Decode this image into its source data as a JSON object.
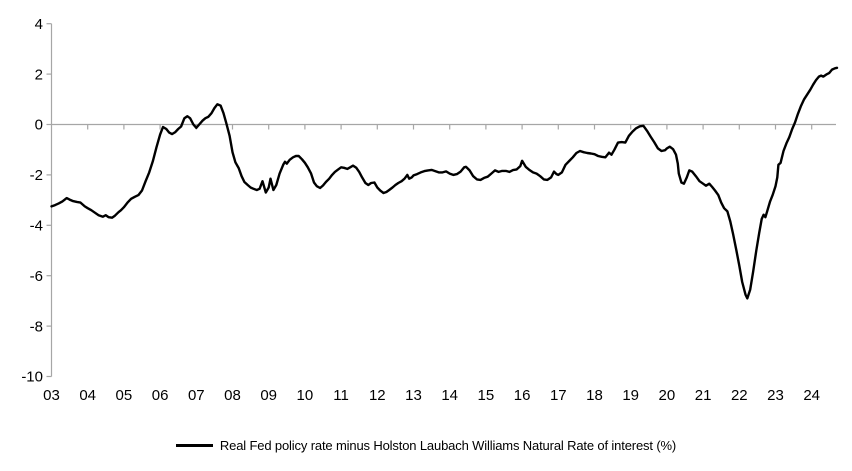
{
  "chart_data": {
    "type": "line",
    "title": "",
    "series_name": "Real Fed policy rate minus Holston Laubach Williams Natural Rate of interest (%)",
    "line_color": "#000000",
    "axis_color": "#A6A6A6",
    "grid": "zero-line-only",
    "legend_position": "bottom-center",
    "ylim": [
      -10,
      4
    ],
    "xlim": [
      2003,
      2024.75
    ],
    "y_ticks": [
      4,
      2,
      0,
      -2,
      -4,
      -6,
      -8,
      -10
    ],
    "x_tick_labels": [
      "03",
      "04",
      "05",
      "06",
      "07",
      "08",
      "09",
      "10",
      "11",
      "12",
      "13",
      "14",
      "15",
      "16",
      "17",
      "18",
      "19",
      "20",
      "21",
      "22",
      "23",
      "24"
    ],
    "points": [
      [
        2003.0,
        -3.25
      ],
      [
        2003.1,
        -3.2
      ],
      [
        2003.2,
        -3.13
      ],
      [
        2003.3,
        -3.05
      ],
      [
        2003.42,
        -2.92
      ],
      [
        2003.5,
        -2.98
      ],
      [
        2003.58,
        -3.03
      ],
      [
        2003.7,
        -3.07
      ],
      [
        2003.8,
        -3.1
      ],
      [
        2003.92,
        -3.25
      ],
      [
        2004.0,
        -3.32
      ],
      [
        2004.1,
        -3.4
      ],
      [
        2004.2,
        -3.5
      ],
      [
        2004.3,
        -3.6
      ],
      [
        2004.42,
        -3.66
      ],
      [
        2004.5,
        -3.6
      ],
      [
        2004.58,
        -3.68
      ],
      [
        2004.67,
        -3.7
      ],
      [
        2004.75,
        -3.62
      ],
      [
        2004.85,
        -3.48
      ],
      [
        2004.92,
        -3.4
      ],
      [
        2005.0,
        -3.28
      ],
      [
        2005.1,
        -3.1
      ],
      [
        2005.2,
        -2.95
      ],
      [
        2005.3,
        -2.87
      ],
      [
        2005.4,
        -2.8
      ],
      [
        2005.5,
        -2.62
      ],
      [
        2005.6,
        -2.25
      ],
      [
        2005.7,
        -1.9
      ],
      [
        2005.8,
        -1.45
      ],
      [
        2005.9,
        -0.9
      ],
      [
        2006.0,
        -0.4
      ],
      [
        2006.08,
        -0.1
      ],
      [
        2006.17,
        -0.18
      ],
      [
        2006.25,
        -0.32
      ],
      [
        2006.33,
        -0.38
      ],
      [
        2006.42,
        -0.3
      ],
      [
        2006.5,
        -0.18
      ],
      [
        2006.58,
        -0.08
      ],
      [
        2006.67,
        0.25
      ],
      [
        2006.75,
        0.33
      ],
      [
        2006.83,
        0.25
      ],
      [
        2006.92,
        0.0
      ],
      [
        2007.0,
        -0.13
      ],
      [
        2007.08,
        0.0
      ],
      [
        2007.17,
        0.15
      ],
      [
        2007.25,
        0.25
      ],
      [
        2007.33,
        0.3
      ],
      [
        2007.42,
        0.45
      ],
      [
        2007.5,
        0.65
      ],
      [
        2007.58,
        0.8
      ],
      [
        2007.67,
        0.75
      ],
      [
        2007.75,
        0.45
      ],
      [
        2007.83,
        0.05
      ],
      [
        2007.92,
        -0.45
      ],
      [
        2008.0,
        -1.1
      ],
      [
        2008.08,
        -1.5
      ],
      [
        2008.17,
        -1.73
      ],
      [
        2008.25,
        -2.05
      ],
      [
        2008.33,
        -2.28
      ],
      [
        2008.42,
        -2.4
      ],
      [
        2008.5,
        -2.5
      ],
      [
        2008.58,
        -2.55
      ],
      [
        2008.67,
        -2.6
      ],
      [
        2008.75,
        -2.55
      ],
      [
        2008.83,
        -2.25
      ],
      [
        2008.92,
        -2.7
      ],
      [
        2009.0,
        -2.5
      ],
      [
        2009.05,
        -2.15
      ],
      [
        2009.13,
        -2.6
      ],
      [
        2009.21,
        -2.4
      ],
      [
        2009.3,
        -1.95
      ],
      [
        2009.4,
        -1.6
      ],
      [
        2009.45,
        -1.48
      ],
      [
        2009.5,
        -1.55
      ],
      [
        2009.58,
        -1.4
      ],
      [
        2009.67,
        -1.3
      ],
      [
        2009.75,
        -1.25
      ],
      [
        2009.83,
        -1.25
      ],
      [
        2009.92,
        -1.38
      ],
      [
        2010.0,
        -1.52
      ],
      [
        2010.08,
        -1.7
      ],
      [
        2010.17,
        -1.95
      ],
      [
        2010.25,
        -2.3
      ],
      [
        2010.33,
        -2.45
      ],
      [
        2010.42,
        -2.52
      ],
      [
        2010.5,
        -2.42
      ],
      [
        2010.58,
        -2.28
      ],
      [
        2010.67,
        -2.15
      ],
      [
        2010.75,
        -2.0
      ],
      [
        2010.83,
        -1.88
      ],
      [
        2010.92,
        -1.78
      ],
      [
        2011.0,
        -1.7
      ],
      [
        2011.08,
        -1.72
      ],
      [
        2011.17,
        -1.76
      ],
      [
        2011.25,
        -1.7
      ],
      [
        2011.33,
        -1.63
      ],
      [
        2011.42,
        -1.72
      ],
      [
        2011.5,
        -1.88
      ],
      [
        2011.58,
        -2.1
      ],
      [
        2011.67,
        -2.32
      ],
      [
        2011.75,
        -2.4
      ],
      [
        2011.83,
        -2.32
      ],
      [
        2011.92,
        -2.3
      ],
      [
        2012.0,
        -2.5
      ],
      [
        2012.08,
        -2.62
      ],
      [
        2012.17,
        -2.72
      ],
      [
        2012.25,
        -2.68
      ],
      [
        2012.33,
        -2.6
      ],
      [
        2012.42,
        -2.5
      ],
      [
        2012.5,
        -2.4
      ],
      [
        2012.58,
        -2.32
      ],
      [
        2012.67,
        -2.25
      ],
      [
        2012.75,
        -2.15
      ],
      [
        2012.83,
        -2.0
      ],
      [
        2012.88,
        -2.15
      ],
      [
        2012.95,
        -2.1
      ],
      [
        2013.0,
        -2.02
      ],
      [
        2013.1,
        -1.97
      ],
      [
        2013.2,
        -1.9
      ],
      [
        2013.3,
        -1.85
      ],
      [
        2013.4,
        -1.82
      ],
      [
        2013.5,
        -1.8
      ],
      [
        2013.6,
        -1.85
      ],
      [
        2013.7,
        -1.9
      ],
      [
        2013.8,
        -1.9
      ],
      [
        2013.9,
        -1.86
      ],
      [
        2014.0,
        -1.95
      ],
      [
        2014.1,
        -2.0
      ],
      [
        2014.2,
        -1.97
      ],
      [
        2014.3,
        -1.87
      ],
      [
        2014.4,
        -1.7
      ],
      [
        2014.45,
        -1.68
      ],
      [
        2014.55,
        -1.82
      ],
      [
        2014.65,
        -2.05
      ],
      [
        2014.75,
        -2.18
      ],
      [
        2014.85,
        -2.2
      ],
      [
        2014.95,
        -2.12
      ],
      [
        2015.05,
        -2.07
      ],
      [
        2015.15,
        -1.95
      ],
      [
        2015.25,
        -1.82
      ],
      [
        2015.35,
        -1.88
      ],
      [
        2015.45,
        -1.84
      ],
      [
        2015.55,
        -1.84
      ],
      [
        2015.65,
        -1.88
      ],
      [
        2015.75,
        -1.81
      ],
      [
        2015.85,
        -1.78
      ],
      [
        2015.95,
        -1.65
      ],
      [
        2016.0,
        -1.44
      ],
      [
        2016.1,
        -1.68
      ],
      [
        2016.2,
        -1.8
      ],
      [
        2016.3,
        -1.9
      ],
      [
        2016.4,
        -1.95
      ],
      [
        2016.5,
        -2.05
      ],
      [
        2016.6,
        -2.18
      ],
      [
        2016.7,
        -2.2
      ],
      [
        2016.8,
        -2.1
      ],
      [
        2016.88,
        -1.87
      ],
      [
        2016.95,
        -1.97
      ],
      [
        2017.0,
        -2.0
      ],
      [
        2017.1,
        -1.9
      ],
      [
        2017.2,
        -1.6
      ],
      [
        2017.3,
        -1.45
      ],
      [
        2017.4,
        -1.3
      ],
      [
        2017.5,
        -1.13
      ],
      [
        2017.6,
        -1.05
      ],
      [
        2017.7,
        -1.1
      ],
      [
        2017.8,
        -1.13
      ],
      [
        2017.9,
        -1.15
      ],
      [
        2018.0,
        -1.18
      ],
      [
        2018.1,
        -1.25
      ],
      [
        2018.2,
        -1.28
      ],
      [
        2018.3,
        -1.3
      ],
      [
        2018.4,
        -1.12
      ],
      [
        2018.47,
        -1.2
      ],
      [
        2018.55,
        -1.0
      ],
      [
        2018.65,
        -0.72
      ],
      [
        2018.75,
        -0.7
      ],
      [
        2018.85,
        -0.72
      ],
      [
        2018.95,
        -0.45
      ],
      [
        2019.05,
        -0.28
      ],
      [
        2019.15,
        -0.15
      ],
      [
        2019.25,
        -0.07
      ],
      [
        2019.35,
        -0.05
      ],
      [
        2019.45,
        -0.25
      ],
      [
        2019.55,
        -0.48
      ],
      [
        2019.65,
        -0.7
      ],
      [
        2019.75,
        -0.95
      ],
      [
        2019.85,
        -1.05
      ],
      [
        2019.95,
        -1.02
      ],
      [
        2020.0,
        -0.95
      ],
      [
        2020.08,
        -0.88
      ],
      [
        2020.17,
        -0.98
      ],
      [
        2020.25,
        -1.2
      ],
      [
        2020.3,
        -1.55
      ],
      [
        2020.33,
        -1.95
      ],
      [
        2020.4,
        -2.3
      ],
      [
        2020.47,
        -2.35
      ],
      [
        2020.55,
        -2.1
      ],
      [
        2020.62,
        -1.82
      ],
      [
        2020.7,
        -1.87
      ],
      [
        2020.8,
        -2.05
      ],
      [
        2020.9,
        -2.25
      ],
      [
        2021.0,
        -2.35
      ],
      [
        2021.08,
        -2.43
      ],
      [
        2021.17,
        -2.35
      ],
      [
        2021.25,
        -2.48
      ],
      [
        2021.33,
        -2.62
      ],
      [
        2021.42,
        -2.8
      ],
      [
        2021.5,
        -3.1
      ],
      [
        2021.58,
        -3.32
      ],
      [
        2021.67,
        -3.45
      ],
      [
        2021.75,
        -3.85
      ],
      [
        2021.83,
        -4.35
      ],
      [
        2021.92,
        -5.0
      ],
      [
        2022.0,
        -5.6
      ],
      [
        2022.08,
        -6.25
      ],
      [
        2022.17,
        -6.75
      ],
      [
        2022.22,
        -6.9
      ],
      [
        2022.3,
        -6.55
      ],
      [
        2022.38,
        -5.85
      ],
      [
        2022.47,
        -5.0
      ],
      [
        2022.55,
        -4.3
      ],
      [
        2022.62,
        -3.75
      ],
      [
        2022.67,
        -3.58
      ],
      [
        2022.72,
        -3.68
      ],
      [
        2022.78,
        -3.4
      ],
      [
        2022.85,
        -3.05
      ],
      [
        2022.92,
        -2.8
      ],
      [
        2023.0,
        -2.45
      ],
      [
        2023.05,
        -2.1
      ],
      [
        2023.08,
        -1.6
      ],
      [
        2023.14,
        -1.52
      ],
      [
        2023.22,
        -1.05
      ],
      [
        2023.3,
        -0.75
      ],
      [
        2023.38,
        -0.5
      ],
      [
        2023.46,
        -0.18
      ],
      [
        2023.54,
        0.08
      ],
      [
        2023.62,
        0.42
      ],
      [
        2023.7,
        0.72
      ],
      [
        2023.79,
        1.0
      ],
      [
        2023.87,
        1.18
      ],
      [
        2023.96,
        1.38
      ],
      [
        2024.04,
        1.58
      ],
      [
        2024.12,
        1.76
      ],
      [
        2024.2,
        1.9
      ],
      [
        2024.26,
        1.94
      ],
      [
        2024.32,
        1.9
      ],
      [
        2024.4,
        1.98
      ],
      [
        2024.48,
        2.04
      ],
      [
        2024.56,
        2.18
      ],
      [
        2024.64,
        2.23
      ],
      [
        2024.7,
        2.25
      ]
    ]
  },
  "legend": {
    "label": "Real Fed policy rate minus Holston Laubach Williams Natural Rate of interest (%)"
  }
}
